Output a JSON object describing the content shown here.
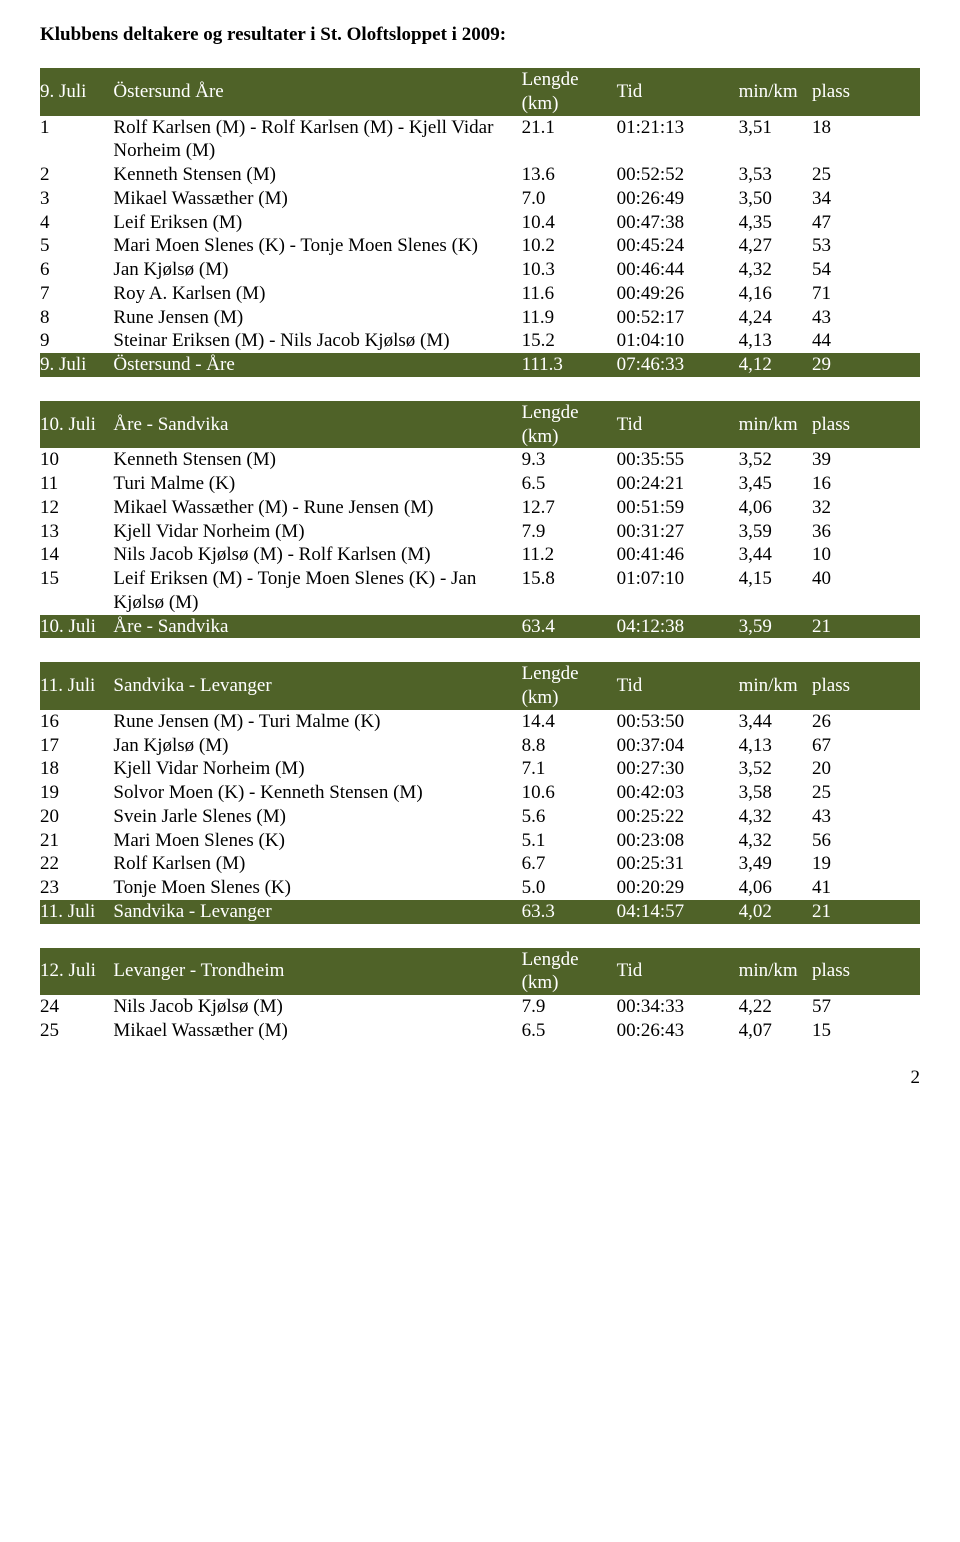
{
  "title": "Klubbens deltakere og resultater i St. Oloftsloppet i 2009:",
  "columns": {
    "lengde_line1": "Lengde",
    "lengde_line2": "(km)",
    "tid": "Tid",
    "minkm": "min/km",
    "plass": "plass"
  },
  "tables": [
    {
      "header_date": "9. Juli",
      "header_route": "Östersund  Åre",
      "rows": [
        {
          "num": "1",
          "name": "Rolf Karlsen (M) - Rolf Karlsen (M) - Kjell Vidar Norheim (M)",
          "len": "21.1",
          "tid": "01:21:13",
          "pace": "3,51",
          "plass": "18"
        },
        {
          "num": "2",
          "name": "Kenneth Stensen (M)",
          "len": "13.6",
          "tid": "00:52:52",
          "pace": "3,53",
          "plass": "25"
        },
        {
          "num": "3",
          "name": "Mikael Wassæther (M)",
          "len": "7.0",
          "tid": "00:26:49",
          "pace": "3,50",
          "plass": "34"
        },
        {
          "num": "4",
          "name": "Leif Eriksen (M)",
          "len": "10.4",
          "tid": "00:47:38",
          "pace": "4,35",
          "plass": "47"
        },
        {
          "num": "5",
          "name": "Mari Moen Slenes (K) - Tonje Moen Slenes (K)",
          "len": "10.2",
          "tid": "00:45:24",
          "pace": "4,27",
          "plass": "53"
        },
        {
          "num": "6",
          "name": "Jan Kjølsø (M)",
          "len": "10.3",
          "tid": "00:46:44",
          "pace": "4,32",
          "plass": "54"
        },
        {
          "num": "7",
          "name": "Roy A. Karlsen (M)",
          "len": "11.6",
          "tid": "00:49:26",
          "pace": "4,16",
          "plass": "71"
        },
        {
          "num": "8",
          "name": "Rune Jensen (M)",
          "len": "11.9",
          "tid": "00:52:17",
          "pace": "4,24",
          "plass": "43"
        },
        {
          "num": "9",
          "name": "Steinar Eriksen (M) - Nils Jacob Kjølsø (M)",
          "len": "15.2",
          "tid": "01:04:10",
          "pace": "4,13",
          "plass": "44"
        }
      ],
      "summary": {
        "date": "9. Juli",
        "route": "Östersund - Åre",
        "len": "111.3",
        "tid": "07:46:33",
        "pace": "4,12",
        "plass": "29"
      }
    },
    {
      "header_date": "10. Juli",
      "header_route": "Åre - Sandvika",
      "rows": [
        {
          "num": "10",
          "name": "Kenneth Stensen (M)",
          "len": "9.3",
          "tid": "00:35:55",
          "pace": "3,52",
          "plass": "39"
        },
        {
          "num": "11",
          "name": "Turi Malme (K)",
          "len": "6.5",
          "tid": "00:24:21",
          "pace": "3,45",
          "plass": "16"
        },
        {
          "num": "12",
          "name": "Mikael Wassæther (M) - Rune Jensen (M)",
          "len": "12.7",
          "tid": "00:51:59",
          "pace": "4,06",
          "plass": "32"
        },
        {
          "num": "13",
          "name": "Kjell Vidar Norheim (M)",
          "len": "7.9",
          "tid": "00:31:27",
          "pace": "3,59",
          "plass": "36"
        },
        {
          "num": "14",
          "name": "Nils Jacob Kjølsø (M) - Rolf Karlsen (M)",
          "len": "11.2",
          "tid": "00:41:46",
          "pace": "3,44",
          "plass": "10"
        },
        {
          "num": "15",
          "name": "Leif Eriksen (M) - Tonje Moen Slenes (K) - Jan Kjølsø (M)",
          "len": "15.8",
          "tid": "01:07:10",
          "pace": "4,15",
          "plass": "40"
        }
      ],
      "summary": {
        "date": "10. Juli",
        "route": "Åre - Sandvika",
        "len": "63.4",
        "tid": "04:12:38",
        "pace": "3,59",
        "plass": "21"
      }
    },
    {
      "header_date": "11. Juli",
      "header_route": "Sandvika - Levanger",
      "rows": [
        {
          "num": "16",
          "name": "Rune Jensen (M) - Turi Malme (K)",
          "len": "14.4",
          "tid": "00:53:50",
          "pace": "3,44",
          "plass": "26"
        },
        {
          "num": "17",
          "name": "Jan Kjølsø (M)",
          "len": "8.8",
          "tid": "00:37:04",
          "pace": "4,13",
          "plass": "67"
        },
        {
          "num": "18",
          "name": "Kjell Vidar Norheim (M)",
          "len": "7.1",
          "tid": "00:27:30",
          "pace": "3,52",
          "plass": "20"
        },
        {
          "num": "19",
          "name": "Solvor Moen (K) - Kenneth Stensen (M)",
          "len": "10.6",
          "tid": "00:42:03",
          "pace": "3,58",
          "plass": "25"
        },
        {
          "num": "20",
          "name": "Svein Jarle Slenes (M)",
          "len": "5.6",
          "tid": "00:25:22",
          "pace": "4,32",
          "plass": "43"
        },
        {
          "num": "21",
          "name": "Mari Moen Slenes (K)",
          "len": "5.1",
          "tid": "00:23:08",
          "pace": "4,32",
          "plass": "56"
        },
        {
          "num": "22",
          "name": "Rolf Karlsen (M)",
          "len": "6.7",
          "tid": "00:25:31",
          "pace": "3,49",
          "plass": "19"
        },
        {
          "num": "23",
          "name": "Tonje Moen Slenes (K)",
          "len": "5.0",
          "tid": "00:20:29",
          "pace": "4,06",
          "plass": "41"
        }
      ],
      "summary": {
        "date": "11. Juli",
        "route": "Sandvika - Levanger",
        "len": "63.3",
        "tid": "04:14:57",
        "pace": "4,02",
        "plass": "21"
      }
    },
    {
      "header_date": "12. Juli",
      "header_route": "Levanger - Trondheim",
      "rows": [
        {
          "num": "24",
          "name": "Nils Jacob Kjølsø (M)",
          "len": "7.9",
          "tid": "00:34:33",
          "pace": "4,22",
          "plass": "57"
        },
        {
          "num": "25",
          "name": "Mikael Wassæther (M)",
          "len": "6.5",
          "tid": "00:26:43",
          "pace": "4,07",
          "plass": "15"
        }
      ],
      "summary": null
    }
  ],
  "page_number": "2",
  "colors": {
    "header_bg": "#4f6228",
    "header_fg": "#ffffff",
    "body_bg": "#ffffff",
    "text": "#000000"
  }
}
